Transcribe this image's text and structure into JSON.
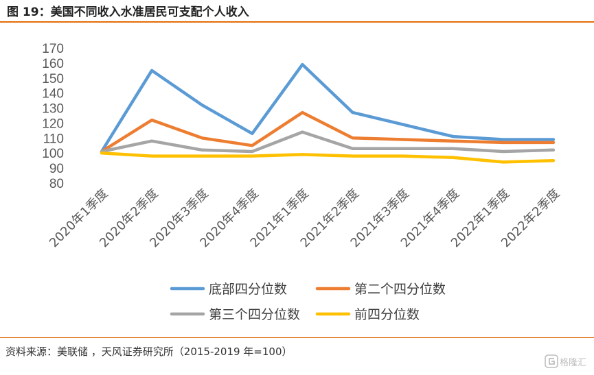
{
  "header": {
    "title": "图 19：美国不同收入水准居民可支配个人收入"
  },
  "footer": {
    "source": "资料来源：美联储 ，天风证券研究所（2015-2019 年=100）"
  },
  "watermark": {
    "icon": "gelonghui-logo-icon",
    "text": "格隆汇"
  },
  "chart_data": {
    "type": "line",
    "categories": [
      "2020年1季度",
      "2020年2季度",
      "2020年3季度",
      "2020年4季度",
      "2021年1季度",
      "2021年2季度",
      "2021年3季度",
      "2021年4季度",
      "2022年1季度",
      "2022年2季度"
    ],
    "yticks": [
      80,
      90,
      100,
      110,
      120,
      130,
      140,
      150,
      160,
      170
    ],
    "ylim": [
      80,
      170
    ],
    "grid": false,
    "legend_position": "bottom",
    "series": [
      {
        "name": "底部四分位数",
        "color": "#5b9bd5",
        "values": [
          101,
          155,
          132,
          113,
          159,
          127,
          119,
          111,
          109,
          109
        ]
      },
      {
        "name": "第二个四分位数",
        "color": "#ed7d31",
        "values": [
          101,
          122,
          110,
          105,
          127,
          110,
          109,
          108,
          107,
          107
        ]
      },
      {
        "name": "第三个四分位数",
        "color": "#a5a5a5",
        "values": [
          101,
          108,
          102,
          101,
          114,
          103,
          103,
          103,
          101,
          102
        ]
      },
      {
        "name": "前四分位数",
        "color": "#ffc000",
        "values": [
          100,
          98,
          98,
          98,
          99,
          98,
          98,
          97,
          94,
          95
        ]
      }
    ]
  }
}
